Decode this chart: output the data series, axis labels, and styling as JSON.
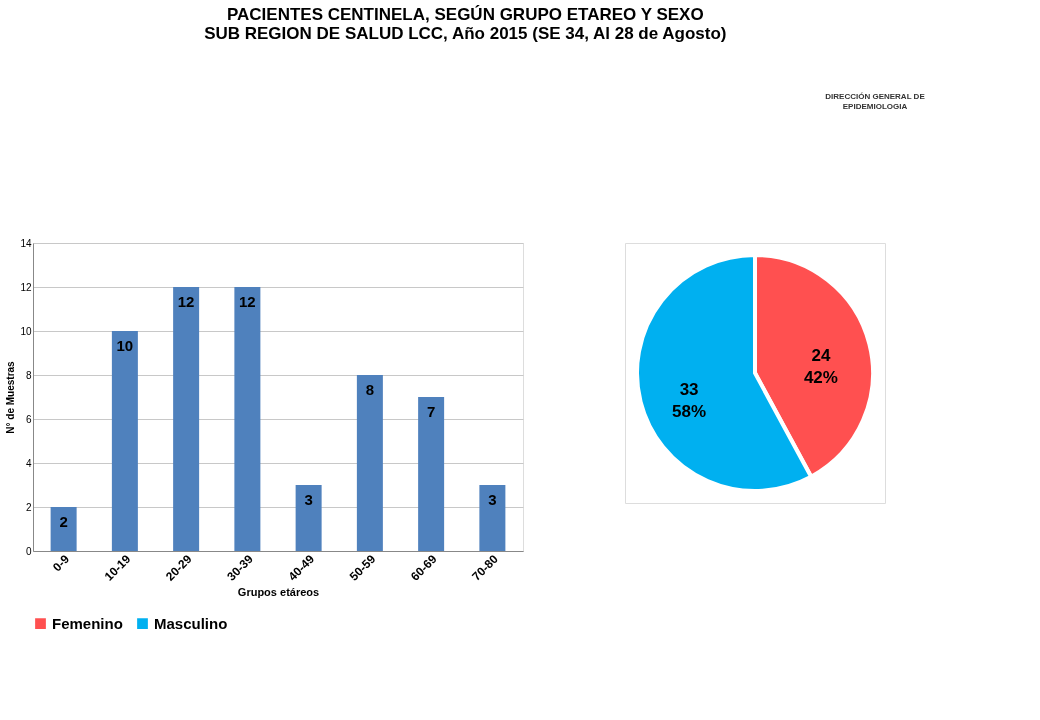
{
  "chart_data": [
    {
      "type": "bar",
      "title": "PACIENTES CENTINELA,  SEGÚN GRUPO ETAREO Y SEXO\nSUB REGION DE SALUD LCC, Año 2015 (SE 34, Al 28 de Agosto)",
      "xlabel": "Grupos etáreos",
      "ylabel": "N° de Muestras",
      "categories": [
        "0-9",
        "10-19",
        "20-29",
        "30-39",
        "40-49",
        "50-59",
        "60-69",
        "70-80"
      ],
      "values": [
        2,
        10,
        12,
        12,
        3,
        8,
        7,
        3
      ],
      "color": "#4f81bd",
      "ylim": [
        0,
        14
      ],
      "yticks": [
        0,
        2,
        4,
        6,
        8,
        10,
        12,
        14
      ],
      "grid": "y",
      "data_labels": true
    },
    {
      "type": "pie",
      "categories": [
        "Femenino",
        "Masculino"
      ],
      "values": [
        24,
        33
      ],
      "colors": [
        "#ff5050",
        "#00b0f0"
      ],
      "value_labels": [
        "24\n42%",
        "33\n58%"
      ],
      "legend": "bottom",
      "annotations": [
        "DIRECCIÓN GENERAL DE\nEPIDEMIOLOGIA"
      ]
    }
  ]
}
